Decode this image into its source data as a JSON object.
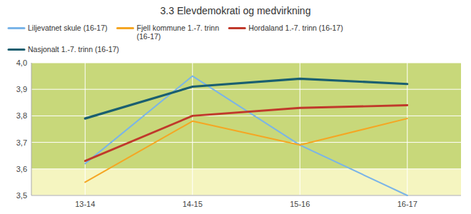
{
  "chart_data": {
    "type": "line",
    "title": "3.3 Elevdemokrati og medvirkning",
    "categories": [
      "13-14",
      "14-15",
      "15-16",
      "16-17"
    ],
    "series": [
      {
        "name": "Liljevatnet skule (16-17)",
        "color": "#7ab4e8",
        "values": [
          3.62,
          3.95,
          3.69,
          3.5
        ]
      },
      {
        "name": "Fjell kommune 1.-7. trinn\n(16-17)",
        "color": "#f5a623",
        "values": [
          3.55,
          3.78,
          3.69,
          3.79
        ]
      },
      {
        "name": "Hordaland 1.-7. trinn (16-17)",
        "color": "#c0392b",
        "values": [
          3.63,
          3.8,
          3.83,
          3.84
        ]
      },
      {
        "name": "Nasjonalt 1.-7. trinn (16-17)",
        "color": "#1a5f70",
        "values": [
          3.79,
          3.91,
          3.94,
          3.92
        ]
      }
    ],
    "bands": [
      {
        "from": 3.5,
        "to": 3.6,
        "color": "#f5f5c0"
      },
      {
        "from": 3.6,
        "to": 4.0,
        "color": "#c8d87a"
      }
    ],
    "ylim": [
      3.5,
      4.0
    ],
    "yticks": [
      {
        "value": 3.5,
        "label": "3,5"
      },
      {
        "value": 3.6,
        "label": "3,6"
      },
      {
        "value": 3.7,
        "label": "3,7"
      },
      {
        "value": 3.8,
        "label": "3,8"
      },
      {
        "value": 3.9,
        "label": "3,9"
      },
      {
        "value": 4.0,
        "label": "4,0"
      }
    ],
    "grid": true,
    "legend": "top"
  }
}
